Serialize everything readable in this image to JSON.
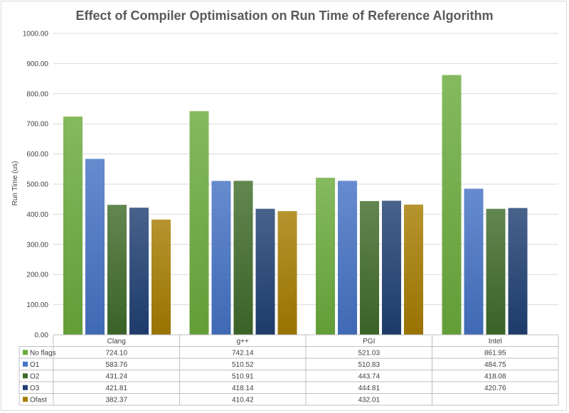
{
  "chart_data": {
    "type": "bar",
    "title": "Effect of Compiler Optimisation on Run Time of Reference Algorithm",
    "ylabel": "Run Time (us)",
    "xlabel": "",
    "ylim": [
      0,
      1000
    ],
    "ytick_step": 100,
    "ytick_labels": [
      "0.00",
      "100.00",
      "200.00",
      "300.00",
      "400.00",
      "500.00",
      "600.00",
      "700.00",
      "800.00",
      "900.00",
      "1000.00"
    ],
    "grid": true,
    "legend": "data-table-left",
    "categories": [
      "Clang",
      "g++",
      "PGI",
      "Intel"
    ],
    "series": [
      {
        "name": "No flags",
        "color": "#6aab3c",
        "values": [
          724.1,
          742.14,
          521.03,
          861.95
        ],
        "labels": [
          "724.10",
          "742.14",
          "521.03",
          "861.95"
        ]
      },
      {
        "name": "O1",
        "color": "#4472c4",
        "values": [
          583.76,
          510.52,
          510.83,
          484.75
        ],
        "labels": [
          "583.76",
          "510.52",
          "510.83",
          "484.75"
        ]
      },
      {
        "name": "O2",
        "color": "#3f6b2a",
        "values": [
          431.24,
          510.91,
          443.74,
          418.08
        ],
        "labels": [
          "431.24",
          "510.91",
          "443.74",
          "418.08"
        ]
      },
      {
        "name": "O3",
        "color": "#203f73",
        "values": [
          421.81,
          418.14,
          444.81,
          420.76
        ],
        "labels": [
          "421.81",
          "418.14",
          "444.81",
          "420.76"
        ]
      },
      {
        "name": "Ofast",
        "color": "#a67c00",
        "values": [
          382.37,
          410.42,
          432.01,
          null
        ],
        "labels": [
          "382.37",
          "410.42",
          "432.01",
          ""
        ]
      }
    ]
  }
}
